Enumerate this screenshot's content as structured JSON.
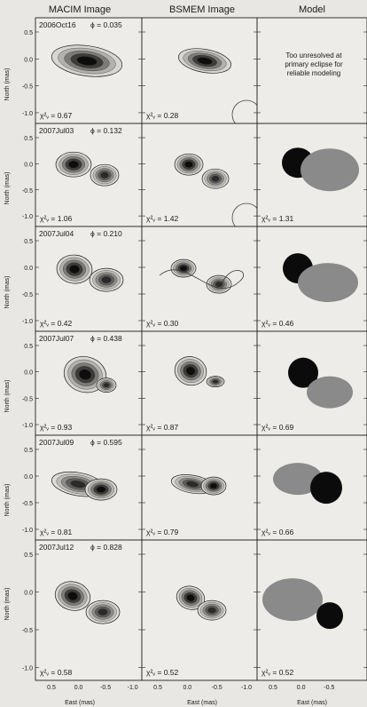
{
  "columns": [
    "MACIM Image",
    "BSMEM Image",
    "Model"
  ],
  "y_axis_label": "North (mas)",
  "x_axis_label": "East (mas)",
  "y_ticks": [
    "0.5",
    "0.0",
    "-0.5",
    "-1.0"
  ],
  "x_ticks_col1": [
    "0.5",
    "0.0",
    "-0.5",
    "-1.0"
  ],
  "x_ticks_col2": [
    "0.5",
    "0.0",
    "-0.5",
    "-1.0"
  ],
  "x_ticks_col3": [
    "0.5",
    "0.0",
    "-0.5"
  ],
  "rows": [
    {
      "date": "2006Oct16",
      "phase": "ϕ = 0.035",
      "chi_macim": "χ²ᵥ = 0.67",
      "chi_bsmem": "χ²ᵥ = 0.28",
      "chi_model": "",
      "model_note": [
        "Too unresolved at",
        "primary eclipse for",
        "reliable modeling"
      ]
    },
    {
      "date": "2007Jul03",
      "phase": "ϕ = 0.132",
      "chi_macim": "χ²ᵥ = 1.06",
      "chi_bsmem": "χ²ᵥ = 1.42",
      "chi_model": "χ²ᵥ = 1.31"
    },
    {
      "date": "2007Jul04",
      "phase": "ϕ = 0.210",
      "chi_macim": "χ²ᵥ = 0.42",
      "chi_bsmem": "χ²ᵥ = 0.30",
      "chi_model": "χ²ᵥ = 0.46"
    },
    {
      "date": "2007Jul07",
      "phase": "ϕ = 0.438",
      "chi_macim": "χ²ᵥ = 0.93",
      "chi_bsmem": "χ²ᵥ = 0.87",
      "chi_model": "χ²ᵥ = 0.69"
    },
    {
      "date": "2007Jul09",
      "phase": "ϕ = 0.595",
      "chi_macim": "χ²ᵥ = 0.81",
      "chi_bsmem": "χ²ᵥ = 0.79",
      "chi_model": "χ²ᵥ = 0.66"
    },
    {
      "date": "2007Jul12",
      "phase": "ϕ = 0.828",
      "chi_macim": "χ²ᵥ = 0.58",
      "chi_bsmem": "χ²ᵥ = 0.52",
      "chi_model": "χ²ᵥ = 0.52"
    }
  ],
  "colors": {
    "background": "#e9e7e3",
    "ink": "#1a1a1a",
    "secondary_component": "#8a8a8a",
    "primary_component": "#0b0b0b"
  }
}
